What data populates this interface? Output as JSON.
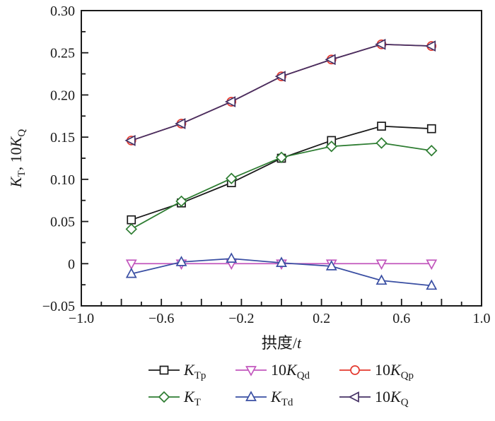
{
  "figure": {
    "background": "#ffffff",
    "frame_color": "#1a1a1a"
  },
  "chart_data": {
    "type": "line",
    "title": "",
    "xlabel": "拱度/t",
    "xlabel_parts": [
      {
        "text": "拱度/",
        "italic": false
      },
      {
        "text": "t",
        "italic": true
      }
    ],
    "ylabel": "K_T, 10K_Q",
    "ylabel_parts": [
      {
        "text": "K",
        "italic": true
      },
      {
        "text": "T",
        "sub": true
      },
      {
        "text": ", 10",
        "italic": false
      },
      {
        "text": "K",
        "italic": true
      },
      {
        "text": "Q",
        "sub": true
      }
    ],
    "xlim": [
      -1.0,
      1.0
    ],
    "ylim": [
      -0.05,
      0.3
    ],
    "grid": false,
    "legend_position": "bottom",
    "x_minor_step": 0.1,
    "x_major_step": 0.2,
    "y_minor_step": 0.025,
    "y_major_step": 0.05,
    "x_ticks_labeled": [
      {
        "v": -1.0,
        "label": "−1.0"
      },
      {
        "v": -0.6,
        "label": "−0.6"
      },
      {
        "v": -0.2,
        "label": "−0.2"
      },
      {
        "v": 0.2,
        "label": "0.2"
      },
      {
        "v": 0.6,
        "label": "0.6"
      },
      {
        "v": 1.0,
        "label": "1.0"
      }
    ],
    "y_ticks_labeled": [
      {
        "v": -0.05,
        "label": "−0.05"
      },
      {
        "v": 0,
        "label": "0"
      },
      {
        "v": 0.05,
        "label": "0.05"
      },
      {
        "v": 0.1,
        "label": "0.10"
      },
      {
        "v": 0.15,
        "label": "0.15"
      },
      {
        "v": 0.2,
        "label": "0.20"
      },
      {
        "v": 0.25,
        "label": "0.25"
      },
      {
        "v": 0.3,
        "label": "0.30"
      }
    ],
    "x": [
      -0.75,
      -0.5,
      -0.25,
      0,
      0.25,
      0.5,
      0.75
    ],
    "series": [
      {
        "name": "K_Tp",
        "legend": {
          "prefix": "",
          "main": "K",
          "sub": "Tp"
        },
        "marker": "square",
        "color": "#1a1a1a",
        "values": [
          0.052,
          0.072,
          0.096,
          0.125,
          0.146,
          0.163,
          0.16
        ]
      },
      {
        "name": "K_T",
        "legend": {
          "prefix": "",
          "main": "K",
          "sub": "T"
        },
        "marker": "diamond",
        "color": "#2e7d32",
        "values": [
          0.041,
          0.074,
          0.101,
          0.126,
          0.139,
          0.143,
          0.134
        ]
      },
      {
        "name": "10K_Qd",
        "legend": {
          "prefix": "10",
          "main": "K",
          "sub": "Qd"
        },
        "marker": "triangle-down",
        "color": "#c257bd",
        "values": [
          0,
          0,
          0,
          0,
          0,
          0,
          0
        ]
      },
      {
        "name": "K_Td",
        "legend": {
          "prefix": "",
          "main": "K",
          "sub": "Td"
        },
        "marker": "triangle-up",
        "color": "#3a4fa3",
        "values": [
          -0.012,
          0.002,
          0.006,
          0.001,
          -0.003,
          -0.02,
          -0.026
        ]
      },
      {
        "name": "10K_Qp",
        "legend": {
          "prefix": "10",
          "main": "K",
          "sub": "Qp"
        },
        "marker": "circle",
        "color": "#e4392e",
        "values": [
          0.146,
          0.166,
          0.192,
          0.222,
          0.242,
          0.26,
          0.258
        ]
      },
      {
        "name": "10K_Q",
        "legend": {
          "prefix": "10",
          "main": "K",
          "sub": "Q"
        },
        "marker": "triangle-left",
        "color": "#443064",
        "values": [
          0.146,
          0.166,
          0.192,
          0.222,
          0.242,
          0.26,
          0.258
        ]
      }
    ],
    "legend_order": [
      "K_Tp",
      "10K_Qd",
      "10K_Qp",
      "K_T",
      "K_Td",
      "10K_Q"
    ]
  }
}
